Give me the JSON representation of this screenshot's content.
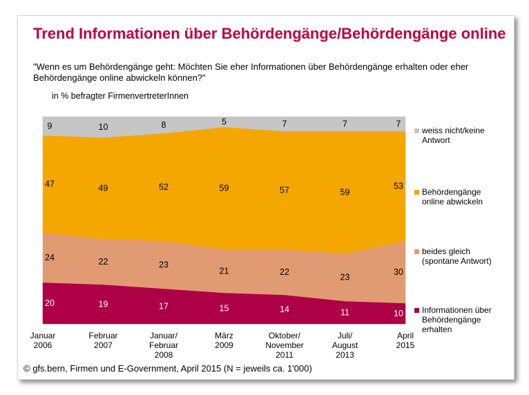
{
  "title": "Trend Informationen über Behördengänge/Behördengänge online",
  "question": "\"Wenn es um Behördengänge geht: Möchten Sie eher Informationen über Behördengänge erhalten oder eher Behördengänge online abwickeln können?\"",
  "unit": "in % befragter FirmenvertreterInnen",
  "source": "© gfs.bern, Firmen und E-Government, April 2015 (N = jeweils ca. 1'000)",
  "chart_data": {
    "type": "area",
    "stacked": true,
    "ylim": [
      0,
      100
    ],
    "categories": [
      [
        "Januar",
        "2006"
      ],
      [
        "Februar",
        "2007"
      ],
      [
        "Januar/",
        "Februar",
        "2008"
      ],
      [
        "März",
        "2009"
      ],
      [
        "Oktober/",
        "November",
        "2011"
      ],
      [
        "Juli/",
        "August",
        "2013"
      ],
      [
        "April",
        "2015"
      ]
    ],
    "series": [
      {
        "key": "info",
        "name": [
          "Informationen über",
          "Behördengänge",
          "erhalten"
        ],
        "color": "#ad0047",
        "label_color": "#ffffff",
        "values": [
          20,
          19,
          17,
          15,
          14,
          11,
          10
        ]
      },
      {
        "key": "beides",
        "name": [
          "beides gleich",
          "(spontane Antwort)"
        ],
        "color": "#e19b72",
        "label_color": "#000000",
        "values": [
          24,
          22,
          23,
          21,
          22,
          23,
          30
        ]
      },
      {
        "key": "online",
        "name": [
          "Behördengänge",
          "online abwickeln"
        ],
        "color": "#f4a700",
        "label_color": "#000000",
        "values": [
          47,
          49,
          52,
          59,
          57,
          59,
          53
        ]
      },
      {
        "key": "wn",
        "name": [
          "weiss nicht/keine",
          "Antwort"
        ],
        "color": "#c6c6c6",
        "label_color": "#000000",
        "values": [
          9,
          10,
          8,
          5,
          7,
          7,
          7
        ]
      }
    ],
    "legend_position": "right",
    "grid": false
  }
}
